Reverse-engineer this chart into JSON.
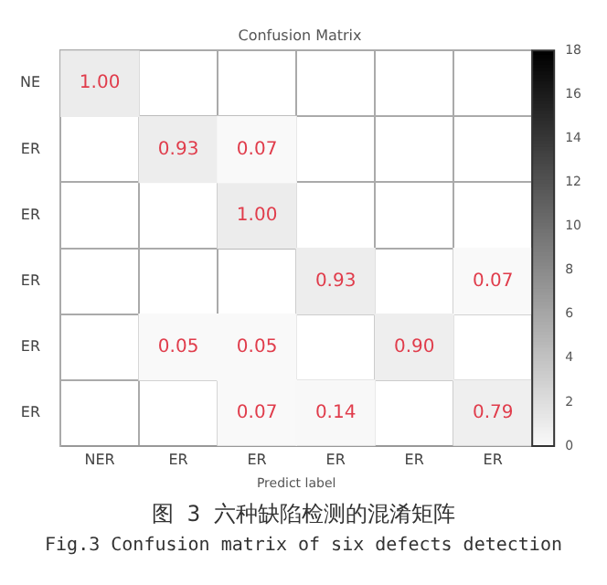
{
  "chart_data": {
    "type": "heatmap",
    "title": "Confusion Matrix",
    "xlabel": "Predict label",
    "categories": [
      "NER",
      "ER",
      "ER",
      "ER",
      "ER",
      "ER"
    ],
    "y_categories": [
      "NE",
      "ER",
      "ER",
      "ER",
      "ER",
      "ER"
    ],
    "cells": [
      [
        1.0,
        null,
        null,
        null,
        null,
        null
      ],
      [
        null,
        0.93,
        0.07,
        null,
        null,
        null
      ],
      [
        null,
        null,
        1.0,
        null,
        null,
        null
      ],
      [
        null,
        null,
        null,
        0.93,
        null,
        0.07
      ],
      [
        null,
        0.05,
        0.05,
        null,
        0.9,
        null
      ],
      [
        null,
        null,
        0.07,
        0.14,
        null,
        0.79
      ]
    ],
    "cell_labels": [
      [
        "1.00",
        null,
        null,
        null,
        null,
        null
      ],
      [
        null,
        "0.93",
        "0.07",
        null,
        null,
        null
      ],
      [
        null,
        null,
        "1.00",
        null,
        null,
        null
      ],
      [
        null,
        null,
        null,
        "0.93",
        null,
        "0.07"
      ],
      [
        null,
        "0.05",
        "0.05",
        null,
        "0.90",
        null
      ],
      [
        null,
        null,
        "0.07",
        "0.14",
        null,
        "0.79"
      ]
    ],
    "clim": [
      0,
      18
    ],
    "cticks": [
      0,
      2,
      4,
      6,
      8,
      10,
      12,
      14,
      16,
      18
    ],
    "annotations": [
      "图 3 六种缺陷检测的混淆矩阵",
      "Fig.3 Confusion matrix of six defects detection"
    ]
  }
}
